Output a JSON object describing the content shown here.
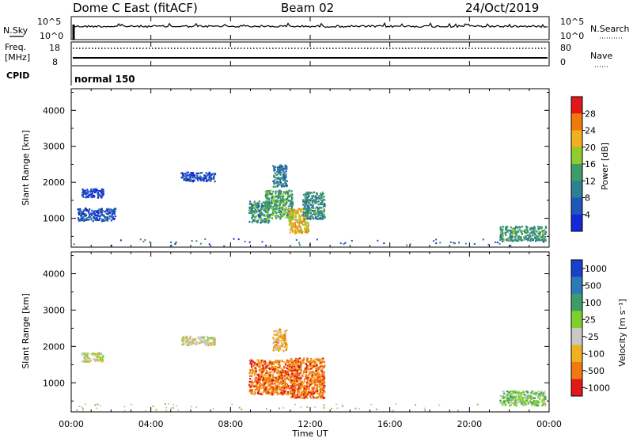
{
  "header": {
    "station": "Dome C East (fitACF)",
    "beam": "Beam 02",
    "date": "24/Oct/2019"
  },
  "noise_panel": {
    "left_label": "N.Sky",
    "right_label": "N.Search",
    "left_top_tick": "10^5",
    "left_bottom_tick": "10^0",
    "right_top_tick": "10^5",
    "right_bottom_tick": "10^0"
  },
  "freq_panel": {
    "left_label_line1": "Freq.",
    "left_label_line2": "[MHz]",
    "right_label": "Nave",
    "left_top_tick": "18",
    "left_bottom_tick": "8",
    "right_top_tick": "80",
    "right_bottom_tick": "0"
  },
  "cpid_panel": {
    "label": "CPID",
    "mode": "normal 150"
  },
  "chart_data": [
    {
      "type": "heatmap",
      "name": "power",
      "ylabel": "Slant Range [km]",
      "xlabel": "",
      "y_ticks": [
        "1000",
        "2000",
        "3000",
        "4000"
      ],
      "ylim": [
        200,
        4600
      ],
      "colorbar_label": "Power [dB]",
      "colorbar_ticks": [
        "4",
        "8",
        "12",
        "16",
        "20",
        "24",
        "28"
      ],
      "colorbar_range": [
        0,
        32
      ],
      "colors": [
        "#1428d8",
        "#1f56b8",
        "#2f7f92",
        "#3d9c6a",
        "#8fcc2c",
        "#f0b020",
        "#f07a10",
        "#e01818"
      ],
      "clusters": [
        {
          "t0": 0.5,
          "t1": 1.6,
          "r0": 1600,
          "r1": 1850,
          "v": 4
        },
        {
          "t0": 0.3,
          "t1": 2.2,
          "r0": 950,
          "r1": 1300,
          "v": 5
        },
        {
          "t0": 5.5,
          "t1": 7.2,
          "r0": 2050,
          "r1": 2300,
          "v": 5
        },
        {
          "t0": 8.9,
          "t1": 9.9,
          "r0": 900,
          "r1": 1500,
          "v": 12
        },
        {
          "t0": 9.7,
          "t1": 11.1,
          "r0": 1000,
          "r1": 1800,
          "v": 14
        },
        {
          "t0": 10.9,
          "t1": 11.9,
          "r0": 600,
          "r1": 1300,
          "v": 22
        },
        {
          "t0": 11.6,
          "t1": 12.7,
          "r0": 1000,
          "r1": 1750,
          "v": 12
        },
        {
          "t0": 10.1,
          "t1": 10.8,
          "r0": 1900,
          "r1": 2500,
          "v": 9
        },
        {
          "t0": 21.5,
          "t1": 23.8,
          "r0": 400,
          "r1": 800,
          "v": 13
        }
      ]
    },
    {
      "type": "heatmap",
      "name": "velocity",
      "ylabel": "Slant Range [km]",
      "xlabel": "Time UT",
      "x_ticks": [
        "00:00",
        "04:00",
        "08:00",
        "12:00",
        "16:00",
        "20:00",
        "00:00"
      ],
      "y_ticks": [
        "1000",
        "2000",
        "3000",
        "4000"
      ],
      "ylim": [
        200,
        4600
      ],
      "colorbar_label": "Velocity [m s⁻¹]",
      "colorbar_ticks": [
        "1000",
        "500",
        "100",
        "25",
        "-25",
        "-100",
        "-500",
        "-1000"
      ],
      "colors": [
        "#1a3fc8",
        "#2b7ab8",
        "#3d9c6a",
        "#7fd02c",
        "#c8c8c8",
        "#f0b020",
        "#f07a10",
        "#e01818"
      ],
      "clusters": [
        {
          "t0": 0.5,
          "t1": 1.6,
          "r0": 1600,
          "r1": 1850,
          "v": 4
        },
        {
          "t0": 5.5,
          "t1": 7.2,
          "r0": 2050,
          "r1": 2300,
          "v": 4
        },
        {
          "t0": 8.9,
          "t1": 11.2,
          "r0": 700,
          "r1": 1650,
          "v": 6
        },
        {
          "t0": 11.0,
          "t1": 12.7,
          "r0": 600,
          "r1": 1700,
          "v": 6
        },
        {
          "t0": 10.1,
          "t1": 10.8,
          "r0": 1900,
          "r1": 2500,
          "v": 5
        },
        {
          "t0": 21.5,
          "t1": 23.8,
          "r0": 400,
          "r1": 800,
          "v": 3
        }
      ]
    }
  ]
}
